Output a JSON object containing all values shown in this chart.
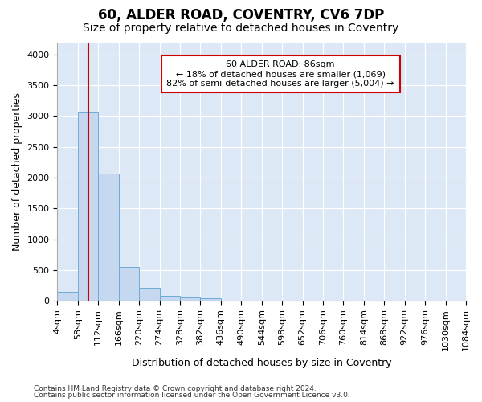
{
  "title": "60, ALDER ROAD, COVENTRY, CV6 7DP",
  "subtitle": "Size of property relative to detached houses in Coventry",
  "xlabel": "Distribution of detached houses by size in Coventry",
  "ylabel": "Number of detached properties",
  "footer_line1": "Contains HM Land Registry data © Crown copyright and database right 2024.",
  "footer_line2": "Contains public sector information licensed under the Open Government Licence v3.0.",
  "bin_edges": [
    4,
    58,
    112,
    166,
    220,
    274,
    328,
    382,
    436,
    490,
    544,
    598,
    652,
    706,
    760,
    814,
    868,
    922,
    976,
    1030,
    1084
  ],
  "bar_heights": [
    150,
    3070,
    2070,
    560,
    220,
    80,
    55,
    50,
    0,
    0,
    0,
    0,
    0,
    0,
    0,
    0,
    0,
    0,
    0,
    0
  ],
  "bar_color": "#c5d8f0",
  "bar_edge_color": "#6daad4",
  "property_size": 86,
  "vline_color": "#cc0000",
  "ylim": [
    0,
    4200
  ],
  "annotation_line1": "60 ALDER ROAD: 86sqm",
  "annotation_line2": "← 18% of detached houses are smaller (1,069)",
  "annotation_line3": "82% of semi-detached houses are larger (5,004) →",
  "annotation_box_color": "#ffffff",
  "annotation_box_edge_color": "#cc0000",
  "plot_bg_color": "#dce8f5",
  "fig_bg_color": "#ffffff",
  "title_fontsize": 12,
  "subtitle_fontsize": 10,
  "ylabel_fontsize": 9,
  "xlabel_fontsize": 9,
  "tick_fontsize": 8,
  "footer_fontsize": 6.5,
  "yticks": [
    0,
    500,
    1000,
    1500,
    2000,
    2500,
    3000,
    3500,
    4000
  ]
}
